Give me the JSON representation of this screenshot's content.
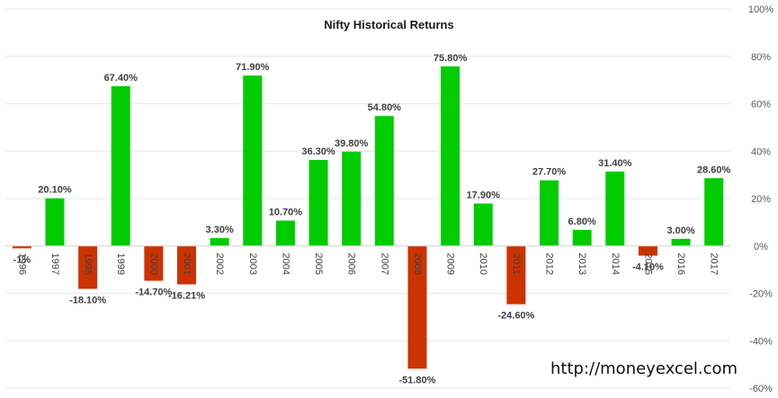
{
  "chart_data": {
    "type": "bar",
    "title": "Nifty Historical Returns",
    "categories": [
      "1996",
      "1997",
      "1998",
      "1999",
      "2000",
      "2001",
      "2002",
      "2003",
      "2004",
      "2005",
      "2006",
      "2007",
      "2008",
      "2009",
      "2010",
      "2011",
      "2012",
      "2013",
      "2014",
      "2015",
      "2016",
      "2017"
    ],
    "values": [
      -1.0,
      20.1,
      -18.1,
      67.4,
      -14.7,
      -16.21,
      3.3,
      71.9,
      10.7,
      36.3,
      39.8,
      54.8,
      -51.8,
      75.8,
      17.9,
      -24.6,
      27.7,
      6.8,
      31.4,
      -4.1,
      3.0,
      28.6
    ],
    "data_labels": [
      "-1%",
      "20.10%",
      "-18.10%",
      "67.40%",
      "-14.70%",
      "-16.21%",
      "3.30%",
      "71.90%",
      "10.70%",
      "36.30%",
      "39.80%",
      "54.80%",
      "-51.80%",
      "75.80%",
      "17.90%",
      "-24.60%",
      "27.70%",
      "6.80%",
      "31.40%",
      "-4.10%",
      "3.00%",
      "28.60%"
    ],
    "y_ticks": [
      "100%",
      "80%",
      "60%",
      "40%",
      "20%",
      "0%",
      "-20%",
      "-40%",
      "-60%"
    ],
    "ylim": [
      -60,
      100
    ],
    "y_axis_position": "right",
    "grid": true,
    "legend": "none",
    "colors": {
      "positive": "#00cc00",
      "negative": "#cc3300",
      "grid": "#e6e6e6",
      "axis_text": "#595959"
    }
  },
  "watermark": "http://moneyexcel.com"
}
